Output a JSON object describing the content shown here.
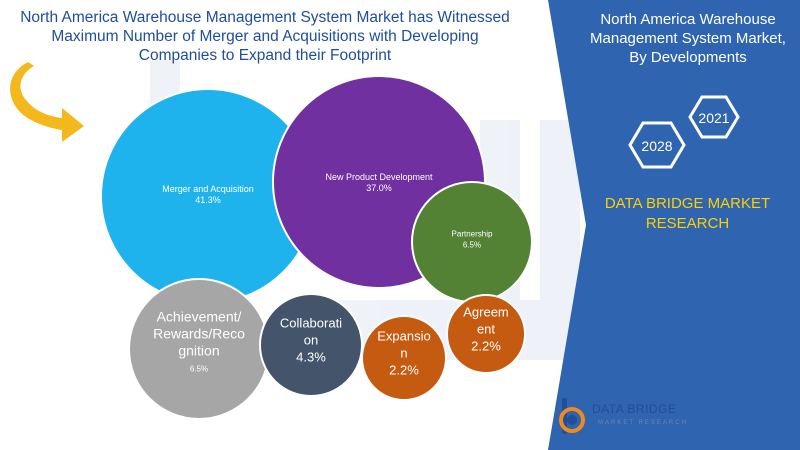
{
  "title": {
    "lines": [
      "North America Warehouse Management System Market has Witnessed",
      "Maximum Number of Merger and Acquisitions with Developing",
      "Companies to Expand their Footprint"
    ]
  },
  "side_panel": {
    "title_lines": [
      "North America Warehouse",
      "Management System Market,",
      "By Developments"
    ],
    "years": [
      "2021",
      "2028"
    ],
    "brand_lines": [
      "DATA BRIDGE MARKET",
      "RESEARCH"
    ]
  },
  "logo": {
    "name": "DATA BRIDGE",
    "sub": "MARKET RESEARCH"
  },
  "colors": {
    "panel": "#2e64b0",
    "arrow": "#f3b81c",
    "brand_text": "#ffd000"
  },
  "chart_data": {
    "type": "bubble",
    "series": [
      {
        "label_lines": [
          "Merger and Acquisition"
        ],
        "value": "41.3%",
        "color": "#1fb3ee"
      },
      {
        "label_lines": [
          "New Product Development"
        ],
        "value": "37.0%",
        "color": "#7030a0"
      },
      {
        "label_lines": [
          "Partnership"
        ],
        "value": "6.5%",
        "color": "#548235"
      },
      {
        "label_lines": [
          "Achievement/",
          "Rewards/Reco",
          "gnition"
        ],
        "value": "6.5%",
        "color": "#a6a6a6"
      },
      {
        "label_lines": [
          "Collaborati",
          "on"
        ],
        "value": "4.3%",
        "color": "#44546a"
      },
      {
        "label_lines": [
          "Expansio",
          "n"
        ],
        "value": "2.2%",
        "color": "#c55a11"
      },
      {
        "label_lines": [
          "Agreem",
          "ent"
        ],
        "value": "2.2%",
        "color": "#c55a11"
      }
    ]
  }
}
